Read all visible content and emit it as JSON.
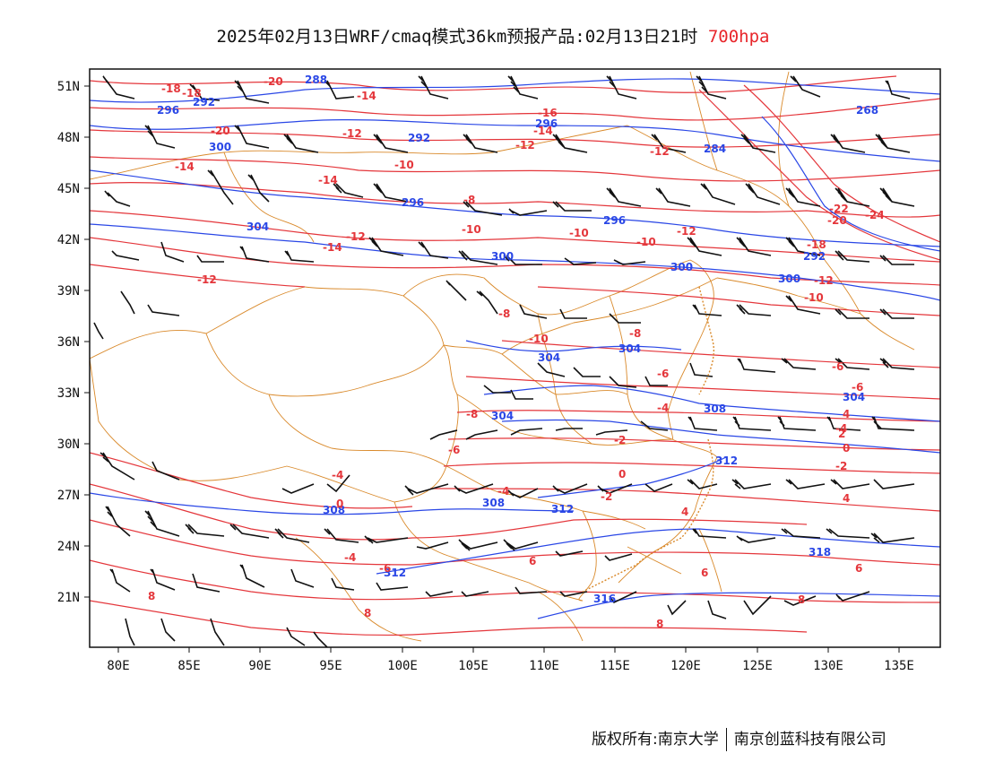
{
  "title": {
    "main": "2025年02月13日WRF/cmaq模式36km预报产品:02月13日21时",
    "level": "700hpa"
  },
  "axes": {
    "lat_labels": [
      "51N",
      "48N",
      "45N",
      "42N",
      "39N",
      "36N",
      "33N",
      "30N",
      "27N",
      "24N",
      "21N"
    ],
    "lon_labels": [
      "80E",
      "85E",
      "90E",
      "95E",
      "100E",
      "105E",
      "110E",
      "115E",
      "120E",
      "125E",
      "130E",
      "135E"
    ]
  },
  "colors": {
    "height_contour": "#2a47e6",
    "temperature_contour": "#e4363b",
    "boundary": "#d9892a",
    "wind_barb": "#111111"
  },
  "contour_labels": {
    "height": [
      "288",
      "296",
      "292",
      "300",
      "292",
      "296",
      "284",
      "268",
      "304",
      "296",
      "300",
      "308",
      "296",
      "300",
      "304",
      "304",
      "304",
      "308",
      "308",
      "312",
      "312",
      "316",
      "312",
      "318",
      "304",
      "300",
      "292"
    ],
    "temperature": [
      "-18",
      "-18",
      "-20",
      "-14",
      "-14",
      "-16",
      "-14",
      "-12",
      "-12",
      "-20",
      "-10",
      "-12",
      "-8",
      "-10",
      "-10",
      "-12",
      "-10",
      "-14",
      "-12",
      "-12",
      "-14",
      "-18",
      "-22",
      "-20",
      "-24",
      "-10",
      "-12",
      "-8",
      "-10",
      "-8",
      "-6",
      "-6",
      "-4",
      "-2",
      "0",
      "-2",
      "0",
      "-4",
      "-6",
      "0",
      "-4",
      "-6",
      "-2",
      "4",
      "4",
      "-4",
      "-8",
      "4",
      "6",
      "6",
      "6",
      "8",
      "8",
      "8",
      "8",
      "2",
      "-6",
      "-4"
    ]
  },
  "footer": {
    "copyright": "版权所有:南京大学",
    "company": "南京创蓝科技有限公司"
  }
}
